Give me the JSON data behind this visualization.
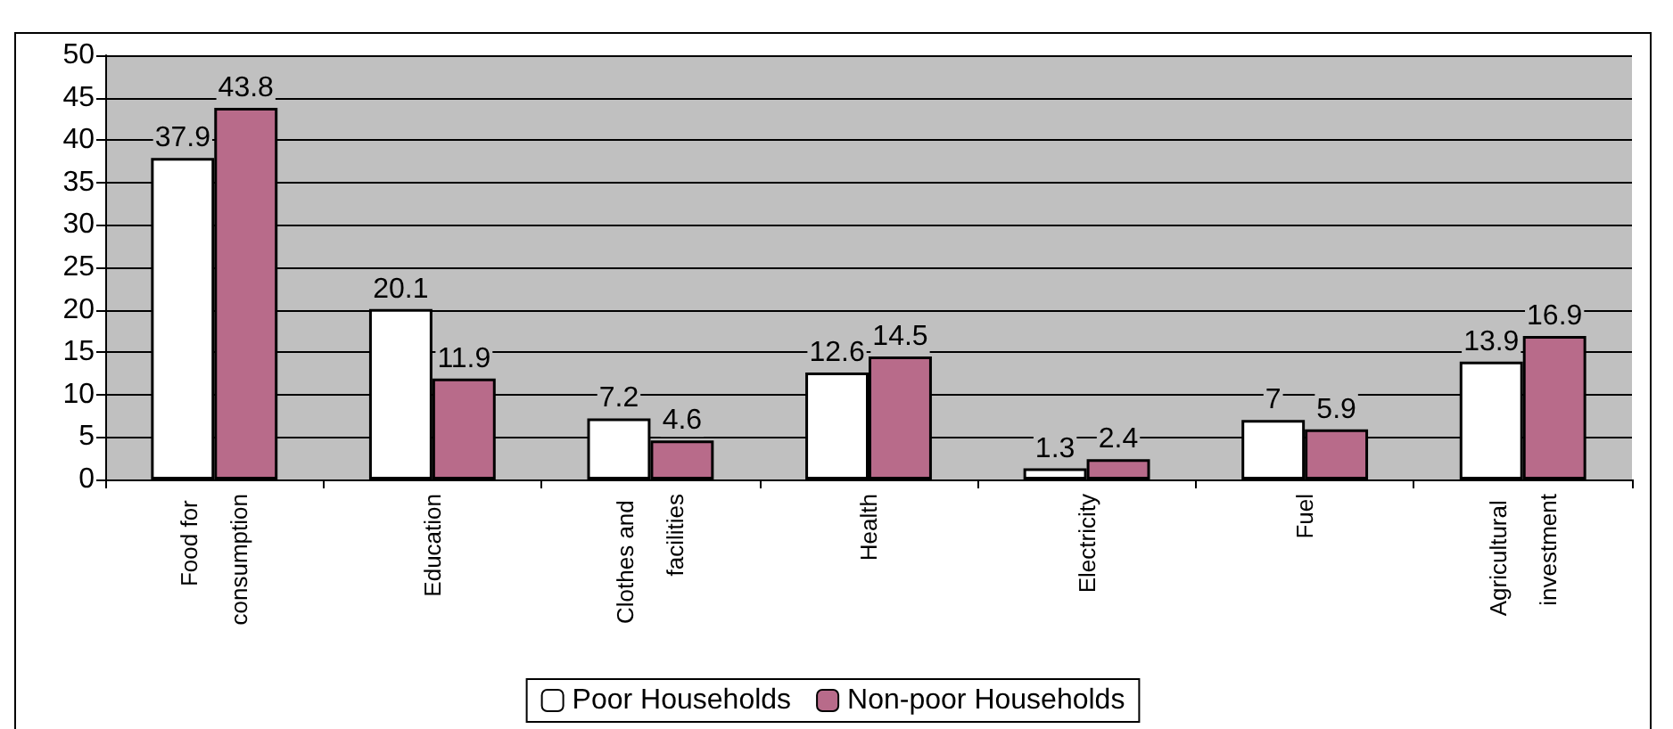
{
  "chart_data": {
    "type": "bar",
    "categories": [
      "Food for consumption",
      "Education",
      "Clothes and facilities",
      "Health",
      "Electricity",
      "Fuel",
      "Agricultural investment"
    ],
    "series": [
      {
        "name": "Poor Households",
        "color": "#ffffff",
        "values": [
          37.9,
          20.1,
          7.2,
          12.6,
          1.3,
          7,
          13.9
        ]
      },
      {
        "name": "Non-poor Households",
        "color": "#b86b8a",
        "values": [
          43.8,
          11.9,
          4.6,
          14.5,
          2.4,
          5.9,
          16.9
        ]
      }
    ],
    "ylim": [
      0,
      50
    ],
    "yticks": [
      0,
      5,
      10,
      15,
      20,
      25,
      30,
      35,
      40,
      45,
      50
    ],
    "grid": "y",
    "legend": "bottom",
    "data_labels": true
  }
}
